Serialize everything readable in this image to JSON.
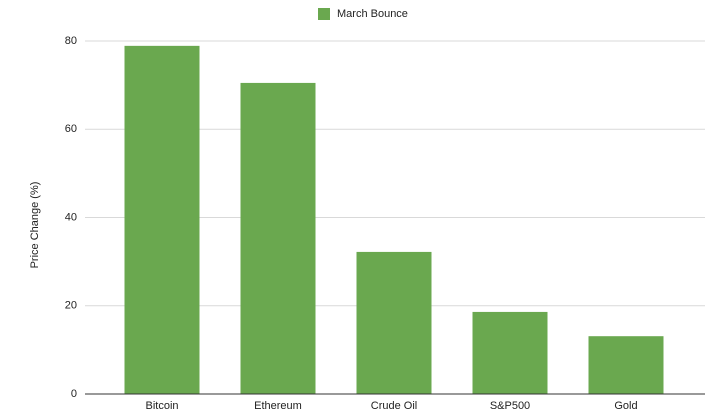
{
  "chart_data": {
    "type": "bar",
    "y_label": "Price Change (%)",
    "categories": [
      "Bitcoin",
      "Ethereum",
      "Crude Oil",
      "S&P500",
      "Gold"
    ],
    "series": [
      {
        "name": "March Bounce",
        "color": "#6aa84f",
        "values": [
          78.9,
          70.5,
          32.2,
          18.6,
          13.1
        ]
      }
    ],
    "ylim": [
      0,
      80
    ],
    "yticks": [
      0,
      20,
      40,
      60,
      80
    ],
    "grid": true,
    "legend": "top"
  }
}
